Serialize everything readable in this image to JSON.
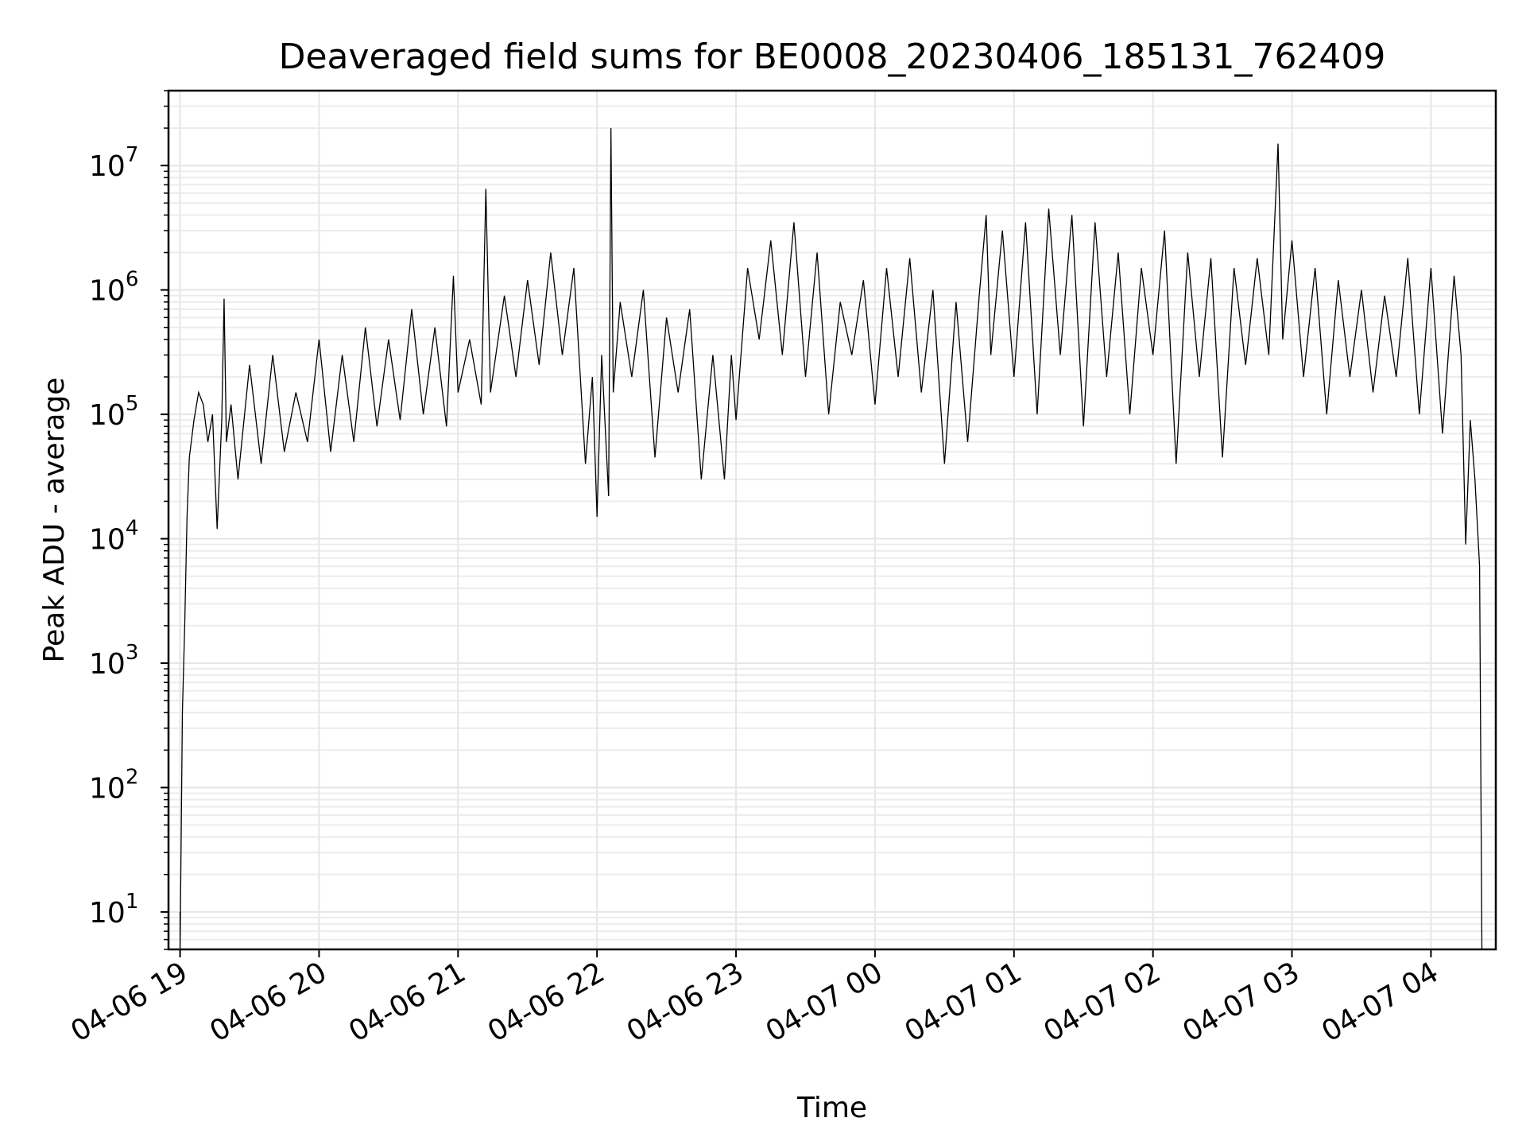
{
  "chart_data": {
    "type": "line",
    "title": "Deaveraged field sums for BE0008_20230406_185131_762409",
    "xlabel": "Time",
    "ylabel": "Peak ADU - average",
    "yscale": "log",
    "ylim": [
      5,
      40000000
    ],
    "xlim": [
      "2023-04-06 18:55",
      "2023-04-07 04:28"
    ],
    "grid": true,
    "series_color": "#000000",
    "x_ticks": [
      {
        "t": "2023-04-06 19:00",
        "label": "04-06 19"
      },
      {
        "t": "2023-04-06 20:00",
        "label": "04-06 20"
      },
      {
        "t": "2023-04-06 21:00",
        "label": "04-06 21"
      },
      {
        "t": "2023-04-06 22:00",
        "label": "04-06 22"
      },
      {
        "t": "2023-04-06 23:00",
        "label": "04-06 23"
      },
      {
        "t": "2023-04-07 00:00",
        "label": "04-07 00"
      },
      {
        "t": "2023-04-07 01:00",
        "label": "04-07 01"
      },
      {
        "t": "2023-04-07 02:00",
        "label": "04-07 02"
      },
      {
        "t": "2023-04-07 03:00",
        "label": "04-07 03"
      },
      {
        "t": "2023-04-07 04:00",
        "label": "04-07 04"
      }
    ],
    "y_ticks": [
      {
        "value": 10,
        "base": "10",
        "exp": "1"
      },
      {
        "value": 100,
        "base": "10",
        "exp": "2"
      },
      {
        "value": 1000,
        "base": "10",
        "exp": "3"
      },
      {
        "value": 10000,
        "base": "10",
        "exp": "4"
      },
      {
        "value": 100000,
        "base": "10",
        "exp": "5"
      },
      {
        "value": 1000000,
        "base": "10",
        "exp": "6"
      },
      {
        "value": 10000000,
        "base": "10",
        "exp": "7"
      }
    ],
    "series": [
      {
        "points": [
          [
            "2023-04-06 19:00",
            10
          ],
          [
            "2023-04-06 19:00",
            5
          ],
          [
            "2023-04-06 19:01",
            400
          ],
          [
            "2023-04-06 19:02",
            2000
          ],
          [
            "2023-04-06 19:03",
            15000
          ],
          [
            "2023-04-06 19:04",
            45000
          ],
          [
            "2023-04-06 19:06",
            90000
          ],
          [
            "2023-04-06 19:08",
            150000
          ],
          [
            "2023-04-06 19:10",
            120000
          ],
          [
            "2023-04-06 19:12",
            60000
          ],
          [
            "2023-04-06 19:14",
            100000
          ],
          [
            "2023-04-06 19:16",
            12000
          ],
          [
            "2023-04-06 19:18",
            90000
          ],
          [
            "2023-04-06 19:19",
            850000
          ],
          [
            "2023-04-06 19:20",
            60000
          ],
          [
            "2023-04-06 19:22",
            120000
          ],
          [
            "2023-04-06 19:25",
            30000
          ],
          [
            "2023-04-06 19:30",
            250000
          ],
          [
            "2023-04-06 19:35",
            40000
          ],
          [
            "2023-04-06 19:40",
            300000
          ],
          [
            "2023-04-06 19:45",
            50000
          ],
          [
            "2023-04-06 19:50",
            150000
          ],
          [
            "2023-04-06 19:55",
            60000
          ],
          [
            "2023-04-06 20:00",
            400000
          ],
          [
            "2023-04-06 20:05",
            50000
          ],
          [
            "2023-04-06 20:10",
            300000
          ],
          [
            "2023-04-06 20:15",
            60000
          ],
          [
            "2023-04-06 20:20",
            500000
          ],
          [
            "2023-04-06 20:25",
            80000
          ],
          [
            "2023-04-06 20:30",
            400000
          ],
          [
            "2023-04-06 20:35",
            90000
          ],
          [
            "2023-04-06 20:40",
            700000
          ],
          [
            "2023-04-06 20:45",
            100000
          ],
          [
            "2023-04-06 20:50",
            500000
          ],
          [
            "2023-04-06 20:55",
            80000
          ],
          [
            "2023-04-06 20:58",
            1300000
          ],
          [
            "2023-04-06 21:00",
            150000
          ],
          [
            "2023-04-06 21:05",
            400000
          ],
          [
            "2023-04-06 21:10",
            120000
          ],
          [
            "2023-04-06 21:12",
            6500000
          ],
          [
            "2023-04-06 21:14",
            150000
          ],
          [
            "2023-04-06 21:20",
            900000
          ],
          [
            "2023-04-06 21:25",
            200000
          ],
          [
            "2023-04-06 21:30",
            1200000
          ],
          [
            "2023-04-06 21:35",
            250000
          ],
          [
            "2023-04-06 21:40",
            2000000
          ],
          [
            "2023-04-06 21:45",
            300000
          ],
          [
            "2023-04-06 21:50",
            1500000
          ],
          [
            "2023-04-06 21:55",
            40000
          ],
          [
            "2023-04-06 21:58",
            200000
          ],
          [
            "2023-04-06 22:00",
            15000
          ],
          [
            "2023-04-06 22:02",
            300000
          ],
          [
            "2023-04-06 22:05",
            22000
          ],
          [
            "2023-04-06 22:06",
            20000000
          ],
          [
            "2023-04-06 22:07",
            150000
          ],
          [
            "2023-04-06 22:10",
            800000
          ],
          [
            "2023-04-06 22:15",
            200000
          ],
          [
            "2023-04-06 22:20",
            1000000
          ],
          [
            "2023-04-06 22:25",
            45000
          ],
          [
            "2023-04-06 22:30",
            600000
          ],
          [
            "2023-04-06 22:35",
            150000
          ],
          [
            "2023-04-06 22:40",
            700000
          ],
          [
            "2023-04-06 22:45",
            30000
          ],
          [
            "2023-04-06 22:50",
            300000
          ],
          [
            "2023-04-06 22:55",
            30000
          ],
          [
            "2023-04-06 22:58",
            300000
          ],
          [
            "2023-04-06 23:00",
            90000
          ],
          [
            "2023-04-06 23:05",
            1500000
          ],
          [
            "2023-04-06 23:10",
            400000
          ],
          [
            "2023-04-06 23:15",
            2500000
          ],
          [
            "2023-04-06 23:20",
            300000
          ],
          [
            "2023-04-06 23:25",
            3500000
          ],
          [
            "2023-04-06 23:30",
            200000
          ],
          [
            "2023-04-06 23:35",
            2000000
          ],
          [
            "2023-04-06 23:40",
            100000
          ],
          [
            "2023-04-06 23:45",
            800000
          ],
          [
            "2023-04-06 23:50",
            300000
          ],
          [
            "2023-04-06 23:55",
            1200000
          ],
          [
            "2023-04-07 00:00",
            120000
          ],
          [
            "2023-04-07 00:05",
            1500000
          ],
          [
            "2023-04-07 00:10",
            200000
          ],
          [
            "2023-04-07 00:15",
            1800000
          ],
          [
            "2023-04-07 00:20",
            150000
          ],
          [
            "2023-04-07 00:25",
            1000000
          ],
          [
            "2023-04-07 00:30",
            40000
          ],
          [
            "2023-04-07 00:35",
            800000
          ],
          [
            "2023-04-07 00:40",
            60000
          ],
          [
            "2023-04-07 00:45",
            900000
          ],
          [
            "2023-04-07 00:48",
            4000000
          ],
          [
            "2023-04-07 00:50",
            300000
          ],
          [
            "2023-04-07 00:55",
            3000000
          ],
          [
            "2023-04-07 01:00",
            200000
          ],
          [
            "2023-04-07 01:05",
            3500000
          ],
          [
            "2023-04-07 01:10",
            100000
          ],
          [
            "2023-04-07 01:15",
            4500000
          ],
          [
            "2023-04-07 01:20",
            300000
          ],
          [
            "2023-04-07 01:25",
            4000000
          ],
          [
            "2023-04-07 01:30",
            80000
          ],
          [
            "2023-04-07 01:35",
            3500000
          ],
          [
            "2023-04-07 01:40",
            200000
          ],
          [
            "2023-04-07 01:45",
            2000000
          ],
          [
            "2023-04-07 01:50",
            100000
          ],
          [
            "2023-04-07 01:55",
            1500000
          ],
          [
            "2023-04-07 02:00",
            300000
          ],
          [
            "2023-04-07 02:05",
            3000000
          ],
          [
            "2023-04-07 02:10",
            40000
          ],
          [
            "2023-04-07 02:15",
            2000000
          ],
          [
            "2023-04-07 02:20",
            200000
          ],
          [
            "2023-04-07 02:25",
            1800000
          ],
          [
            "2023-04-07 02:30",
            45000
          ],
          [
            "2023-04-07 02:35",
            1500000
          ],
          [
            "2023-04-07 02:40",
            250000
          ],
          [
            "2023-04-07 02:45",
            1800000
          ],
          [
            "2023-04-07 02:50",
            300000
          ],
          [
            "2023-04-07 02:54",
            15000000
          ],
          [
            "2023-04-07 02:56",
            400000
          ],
          [
            "2023-04-07 03:00",
            2500000
          ],
          [
            "2023-04-07 03:05",
            200000
          ],
          [
            "2023-04-07 03:10",
            1500000
          ],
          [
            "2023-04-07 03:15",
            100000
          ],
          [
            "2023-04-07 03:20",
            1200000
          ],
          [
            "2023-04-07 03:25",
            200000
          ],
          [
            "2023-04-07 03:30",
            1000000
          ],
          [
            "2023-04-07 03:35",
            150000
          ],
          [
            "2023-04-07 03:40",
            900000
          ],
          [
            "2023-04-07 03:45",
            200000
          ],
          [
            "2023-04-07 03:50",
            1800000
          ],
          [
            "2023-04-07 03:55",
            100000
          ],
          [
            "2023-04-07 04:00",
            1500000
          ],
          [
            "2023-04-07 04:05",
            70000
          ],
          [
            "2023-04-07 04:10",
            1300000
          ],
          [
            "2023-04-07 04:13",
            300000
          ],
          [
            "2023-04-07 04:15",
            9000
          ],
          [
            "2023-04-07 04:17",
            90000
          ],
          [
            "2023-04-07 04:19",
            30000
          ],
          [
            "2023-04-07 04:21",
            6000
          ],
          [
            "2023-04-07 04:22",
            5
          ]
        ]
      }
    ]
  }
}
